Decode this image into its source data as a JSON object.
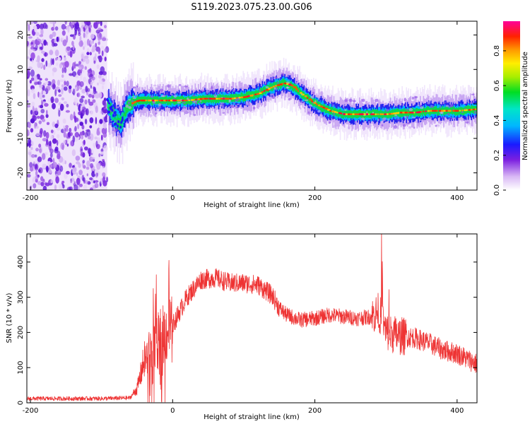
{
  "figure_title": "S119.2023.075.23.00.G06",
  "colors": {
    "signal_line": "#ee3333",
    "frame": "#000000",
    "background": "#ffffff"
  },
  "chart_data": [
    {
      "type": "heatmap",
      "panel": "top",
      "title": "S119.2023.075.23.00.G06",
      "xlabel": "Height of straight line (km)",
      "ylabel": "Frequency (Hz)",
      "xlim": [
        -205,
        428
      ],
      "ylim": [
        -25,
        24
      ],
      "x_ticks": [
        -200,
        0,
        200,
        400
      ],
      "y_ticks": [
        -20,
        -10,
        0,
        10,
        20
      ],
      "colorbar": {
        "label": "Normalized spectral amplitude",
        "range": [
          0,
          0.97
        ],
        "ticks": [
          0.0,
          0.2,
          0.4,
          0.6,
          0.8
        ],
        "colormap": "rainbow (white-violet-blue-cyan-green-yellow-orange-red-magenta)"
      },
      "noise_region_x": [
        -205,
        -92
      ],
      "ridge": {
        "x": [
          -92,
          -85,
          -78,
          -72,
          -68,
          -60,
          -50,
          -40,
          -20,
          0,
          20,
          40,
          60,
          80,
          100,
          120,
          140,
          155,
          165,
          180,
          200,
          220,
          240,
          260,
          280,
          300,
          320,
          340,
          360,
          380,
          400,
          428
        ],
        "frequency": [
          0,
          -3,
          -5,
          -6,
          -2,
          0,
          1,
          1,
          1,
          1,
          1,
          1.5,
          1.5,
          1.5,
          2,
          3,
          5,
          6,
          5.5,
          3,
          0,
          -2,
          -3,
          -3,
          -3,
          -3,
          -2.5,
          -2.5,
          -2,
          -2,
          -2,
          -1.5
        ]
      }
    },
    {
      "type": "line",
      "panel": "bottom",
      "xlabel": "Height of straight line (km)",
      "ylabel": "SNR (10 * v/v)",
      "xlim": [
        -205,
        428
      ],
      "ylim": [
        0,
        480
      ],
      "x_ticks": [
        -200,
        0,
        200,
        400
      ],
      "y_ticks": [
        0,
        100,
        200,
        300,
        400
      ],
      "series": [
        {
          "x": [
            -205,
            -150,
            -100,
            -60,
            -50,
            -40,
            -30,
            -20,
            -10,
            0,
            20,
            40,
            60,
            80,
            100,
            120,
            140,
            150,
            160,
            180,
            200,
            220,
            240,
            260,
            280,
            290,
            300,
            320,
            340,
            360,
            380,
            400,
            428
          ],
          "values": [
            12,
            12,
            12,
            14,
            40,
            120,
            150,
            180,
            200,
            220,
            300,
            350,
            355,
            340,
            340,
            335,
            305,
            270,
            250,
            235,
            240,
            250,
            245,
            240,
            245,
            260,
            200,
            190,
            185,
            170,
            150,
            140,
            110
          ]
        }
      ]
    }
  ]
}
